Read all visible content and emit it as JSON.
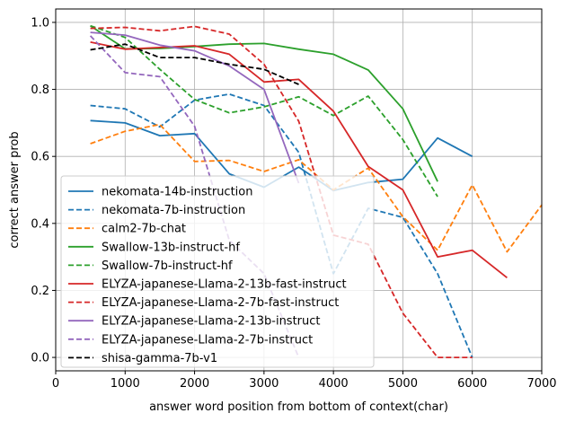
{
  "chart_data": {
    "type": "line",
    "title": "",
    "xlabel": "answer word position from bottom of context(char)",
    "ylabel": "correct answer prob",
    "xlim": [
      0,
      7000
    ],
    "ylim": [
      -0.04,
      1.04
    ],
    "xticks": [
      0,
      1000,
      2000,
      3000,
      4000,
      5000,
      6000,
      7000
    ],
    "yticks": [
      0.0,
      0.2,
      0.4,
      0.6,
      0.8,
      1.0
    ],
    "xtick_labels": [
      "0",
      "1000",
      "2000",
      "3000",
      "4000",
      "5000",
      "6000",
      "7000"
    ],
    "ytick_labels": [
      "0.0",
      "0.2",
      "0.4",
      "0.6",
      "0.8",
      "1.0"
    ],
    "grid": true,
    "legend_position": "lower-left",
    "series": [
      {
        "name": "nekomata-14b-instruction",
        "color": "#1f77b4",
        "dash": "solid",
        "x": [
          500,
          1000,
          1500,
          2000,
          2500,
          3000,
          3500,
          4000,
          4500,
          5000,
          5500,
          6000
        ],
        "y": [
          0.707,
          0.7,
          0.662,
          0.668,
          0.548,
          0.508,
          0.568,
          0.498,
          0.522,
          0.532,
          0.655,
          0.6
        ]
      },
      {
        "name": "nekomata-7b-instruction",
        "color": "#1f77b4",
        "dash": "dashed",
        "x": [
          500,
          1000,
          1500,
          2000,
          2500,
          3000,
          3500,
          4000,
          4500,
          5000,
          5500,
          6000
        ],
        "y": [
          0.752,
          0.742,
          0.688,
          0.768,
          0.786,
          0.752,
          0.612,
          0.25,
          0.445,
          0.418,
          0.25,
          0.0
        ]
      },
      {
        "name": "calm2-7b-chat",
        "color": "#ff7f0e",
        "dash": "dashed",
        "x": [
          500,
          1000,
          1500,
          2000,
          2500,
          3000,
          3500,
          4000,
          4500,
          5000,
          5500,
          6000,
          6500,
          7000
        ],
        "y": [
          0.638,
          0.675,
          0.695,
          0.585,
          0.588,
          0.555,
          0.59,
          0.5,
          0.565,
          0.42,
          0.32,
          0.515,
          0.315,
          0.455
        ]
      },
      {
        "name": "Swallow-13b-instruct-hf",
        "color": "#2ca02c",
        "dash": "solid",
        "x": [
          500,
          1000,
          1500,
          2000,
          2500,
          3000,
          3500,
          4000,
          4500,
          5000,
          5500
        ],
        "y": [
          0.99,
          0.921,
          0.922,
          0.928,
          0.935,
          0.937,
          0.92,
          0.905,
          0.858,
          0.742,
          0.525
        ]
      },
      {
        "name": "Swallow-7b-instruct-hf",
        "color": "#2ca02c",
        "dash": "dashed",
        "x": [
          500,
          1000,
          1500,
          2000,
          2500,
          3000,
          3500,
          4000,
          4500,
          5000,
          5500
        ],
        "y": [
          0.99,
          0.955,
          0.86,
          0.77,
          0.73,
          0.748,
          0.778,
          0.722,
          0.78,
          0.65,
          0.48
        ]
      },
      {
        "name": "ELYZA-japanese-Llama-2-13b-fast-instruct",
        "color": "#d62728",
        "dash": "solid",
        "x": [
          500,
          1000,
          1500,
          2000,
          2500,
          3000,
          3500,
          4000,
          4500,
          5000,
          5500,
          6000,
          6500
        ],
        "y": [
          0.941,
          0.92,
          0.925,
          0.93,
          0.905,
          0.822,
          0.83,
          0.735,
          0.57,
          0.5,
          0.3,
          0.32,
          0.238
        ]
      },
      {
        "name": "ELYZA-japanese-Llama-2-7b-fast-instruct",
        "color": "#d62728",
        "dash": "dashed",
        "x": [
          500,
          1000,
          1500,
          2000,
          2500,
          3000,
          3500,
          4000,
          4500,
          5000,
          5500,
          6000
        ],
        "y": [
          0.982,
          0.985,
          0.975,
          0.988,
          0.965,
          0.875,
          0.705,
          0.365,
          0.338,
          0.132,
          0.0,
          0.0
        ]
      },
      {
        "name": "ELYZA-japanese-Llama-2-13b-instruct",
        "color": "#9467bd",
        "dash": "solid",
        "x": [
          500,
          1000,
          1500,
          2000,
          2500,
          3000,
          3500
        ],
        "y": [
          0.97,
          0.962,
          0.932,
          0.915,
          0.87,
          0.8,
          0.52
        ]
      },
      {
        "name": "ELYZA-japanese-Llama-2-7b-instruct",
        "color": "#9467bd",
        "dash": "dashed",
        "x": [
          500,
          1000,
          1500,
          2000,
          2500,
          3000,
          3500
        ],
        "y": [
          0.96,
          0.85,
          0.838,
          0.69,
          0.35,
          0.25,
          0.0
        ]
      },
      {
        "name": "shisa-gamma-7b-v1",
        "color": "#000000",
        "dash": "dashed",
        "x": [
          500,
          1000,
          1500,
          2000,
          2500,
          3000,
          3500
        ],
        "y": [
          0.918,
          0.935,
          0.895,
          0.895,
          0.875,
          0.86,
          0.815
        ]
      }
    ]
  }
}
